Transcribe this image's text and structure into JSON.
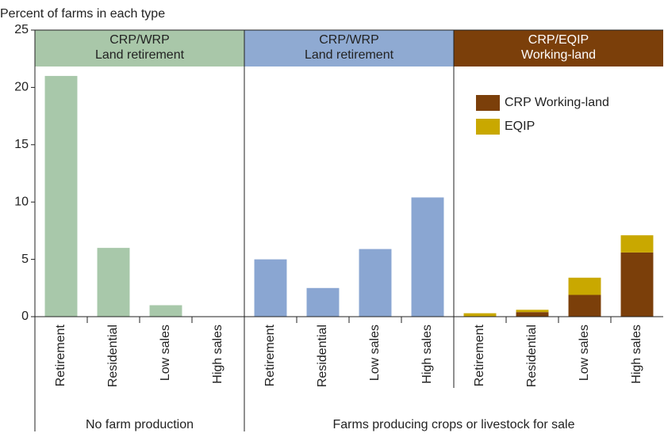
{
  "chart_data": {
    "type": "bar",
    "y_label": "Percent of farms in each type",
    "ylim": [
      0,
      25
    ],
    "yticks": [
      0,
      5,
      10,
      15,
      20,
      25
    ],
    "panels": [
      {
        "title": [
          "CRP/WRP",
          "Land retirement"
        ],
        "color": "#a9c7a9",
        "categories": [
          "Retirement",
          "Residential",
          "Low sales",
          "High sales"
        ],
        "series": [
          {
            "name": "CRP/WRP Land retirement",
            "color": "#a8c8aa",
            "values": [
              21,
              6,
              1,
              0
            ]
          }
        ]
      },
      {
        "title": [
          "CRP/WRP",
          "Land retirement"
        ],
        "color": "#8faad2",
        "categories": [
          "Retirement",
          "Residential",
          "Low sales",
          "High sales"
        ],
        "series": [
          {
            "name": "CRP/WRP Land retirement",
            "color": "#8aa6d2",
            "values": [
              5,
              2.5,
              5.9,
              10.4
            ]
          }
        ]
      },
      {
        "title": [
          "CRP/EQIP",
          "Working-land"
        ],
        "color": "#7b3f0a",
        "categories": [
          "Retirement",
          "Residential",
          "Low sales",
          "High sales"
        ],
        "series": [
          {
            "name": "CRP Working-land",
            "color": "#7b3f0a",
            "values": [
              0,
              0.4,
              1.9,
              5.6
            ]
          },
          {
            "name": "EQIP",
            "color": "#c9a800",
            "values": [
              0.3,
              0.2,
              1.5,
              1.5
            ]
          }
        ],
        "legend": true
      }
    ],
    "groups": [
      "No farm production",
      "Farms producing crops or livestock for sale"
    ]
  }
}
